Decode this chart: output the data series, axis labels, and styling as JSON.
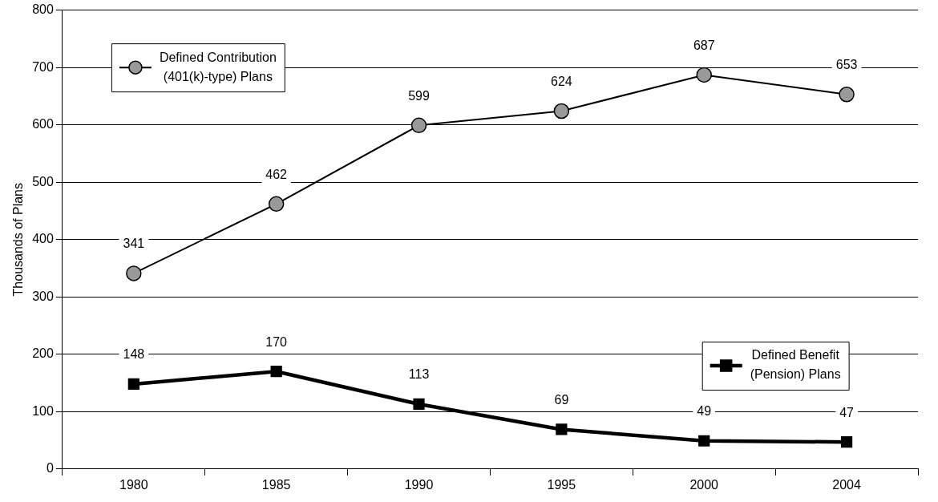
{
  "chart_data": {
    "type": "line",
    "ylabel": "Thousands of Plans",
    "categories": [
      "1980",
      "1985",
      "1990",
      "1995",
      "2000",
      "2004"
    ],
    "series": [
      {
        "name": "Defined Contribution\n(401(k)-type) Plans",
        "color": "#999999",
        "marker": "circle",
        "values": [
          341,
          462,
          599,
          624,
          687,
          653
        ]
      },
      {
        "name": "Defined Benefit\n(Pension) Plans",
        "color": "#000000",
        "marker": "square",
        "values": [
          148,
          170,
          113,
          69,
          49,
          47
        ]
      }
    ],
    "ylim": [
      0,
      800
    ],
    "yticks": [
      0,
      100,
      200,
      300,
      400,
      500,
      600,
      700,
      800
    ],
    "grid": "y",
    "legend": "top left",
    "data_labels": true
  }
}
